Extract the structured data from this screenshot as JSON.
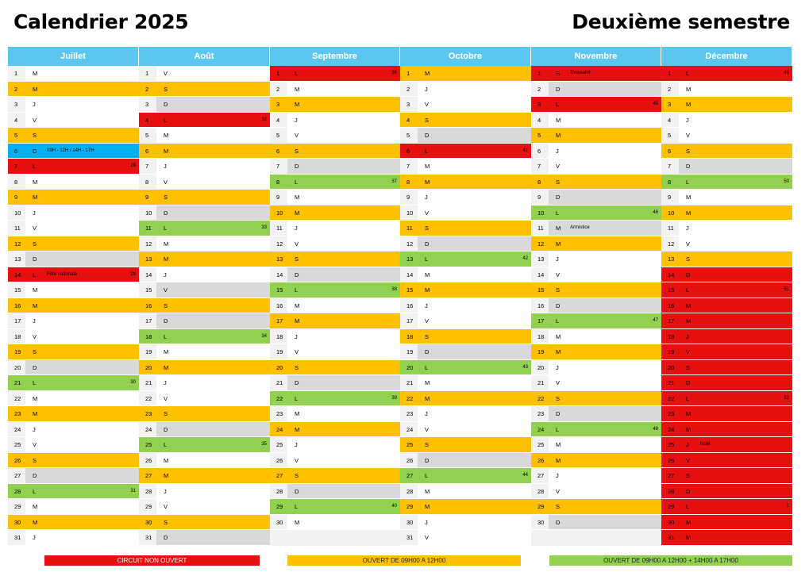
{
  "title_left": "Calendrier 2025",
  "title_right": "Deuxième semestre",
  "legend": {
    "red": "CIRCUIT NON OUVERT",
    "orange": "OUVERT DE 09H00 A 12H00",
    "green": "OUVERT DE 09H00 A 12H00 + 14H00 A 17H00"
  },
  "colors": {
    "red": "#e61010",
    "orange": "#ffc000",
    "green": "#92d050",
    "grey": "#d9d9d9",
    "blue": "#00b0f0",
    "header": "#5bc6ef"
  },
  "months": [
    {
      "name": "Juillet",
      "days": [
        {
          "d": "1",
          "w": "M",
          "c": "white"
        },
        {
          "d": "2",
          "w": "M",
          "c": "orange"
        },
        {
          "d": "3",
          "w": "J",
          "c": "white"
        },
        {
          "d": "4",
          "w": "V",
          "c": "white"
        },
        {
          "d": "5",
          "w": "S",
          "c": "orange"
        },
        {
          "d": "6",
          "w": "D",
          "c": "blue",
          "note": "09H - 12H / 14H - 17H"
        },
        {
          "d": "7",
          "w": "L",
          "c": "red",
          "wk": "28"
        },
        {
          "d": "8",
          "w": "M",
          "c": "white"
        },
        {
          "d": "9",
          "w": "M",
          "c": "orange"
        },
        {
          "d": "10",
          "w": "J",
          "c": "white"
        },
        {
          "d": "11",
          "w": "V",
          "c": "white"
        },
        {
          "d": "12",
          "w": "S",
          "c": "orange"
        },
        {
          "d": "13",
          "w": "D",
          "c": "grey"
        },
        {
          "d": "14",
          "w": "L",
          "c": "red",
          "note": "Fête nationale",
          "wk": "29"
        },
        {
          "d": "15",
          "w": "M",
          "c": "white"
        },
        {
          "d": "16",
          "w": "M",
          "c": "orange"
        },
        {
          "d": "17",
          "w": "J",
          "c": "white"
        },
        {
          "d": "18",
          "w": "V",
          "c": "white"
        },
        {
          "d": "19",
          "w": "S",
          "c": "orange"
        },
        {
          "d": "20",
          "w": "D",
          "c": "grey"
        },
        {
          "d": "21",
          "w": "L",
          "c": "green",
          "wk": "30"
        },
        {
          "d": "22",
          "w": "M",
          "c": "white"
        },
        {
          "d": "23",
          "w": "M",
          "c": "orange"
        },
        {
          "d": "24",
          "w": "J",
          "c": "white"
        },
        {
          "d": "25",
          "w": "V",
          "c": "white"
        },
        {
          "d": "26",
          "w": "S",
          "c": "orange"
        },
        {
          "d": "27",
          "w": "D",
          "c": "grey"
        },
        {
          "d": "28",
          "w": "L",
          "c": "green",
          "wk": "31"
        },
        {
          "d": "29",
          "w": "M",
          "c": "white"
        },
        {
          "d": "30",
          "w": "M",
          "c": "orange"
        },
        {
          "d": "31",
          "w": "J",
          "c": "white"
        }
      ]
    },
    {
      "name": "Août",
      "days": [
        {
          "d": "1",
          "w": "V",
          "c": "white"
        },
        {
          "d": "2",
          "w": "S",
          "c": "orange"
        },
        {
          "d": "3",
          "w": "D",
          "c": "grey"
        },
        {
          "d": "4",
          "w": "L",
          "c": "red",
          "wk": "32"
        },
        {
          "d": "5",
          "w": "M",
          "c": "white"
        },
        {
          "d": "6",
          "w": "M",
          "c": "orange"
        },
        {
          "d": "7",
          "w": "J",
          "c": "white"
        },
        {
          "d": "8",
          "w": "V",
          "c": "white"
        },
        {
          "d": "9",
          "w": "S",
          "c": "orange"
        },
        {
          "d": "10",
          "w": "D",
          "c": "grey"
        },
        {
          "d": "11",
          "w": "L",
          "c": "green",
          "wk": "33"
        },
        {
          "d": "12",
          "w": "M",
          "c": "white"
        },
        {
          "d": "13",
          "w": "M",
          "c": "orange"
        },
        {
          "d": "14",
          "w": "J",
          "c": "white"
        },
        {
          "d": "15",
          "w": "V",
          "c": "grey"
        },
        {
          "d": "16",
          "w": "S",
          "c": "orange"
        },
        {
          "d": "17",
          "w": "D",
          "c": "grey"
        },
        {
          "d": "18",
          "w": "L",
          "c": "green",
          "wk": "34"
        },
        {
          "d": "19",
          "w": "M",
          "c": "white"
        },
        {
          "d": "20",
          "w": "M",
          "c": "orange"
        },
        {
          "d": "21",
          "w": "J",
          "c": "white"
        },
        {
          "d": "22",
          "w": "V",
          "c": "white"
        },
        {
          "d": "23",
          "w": "S",
          "c": "orange"
        },
        {
          "d": "24",
          "w": "D",
          "c": "grey"
        },
        {
          "d": "25",
          "w": "L",
          "c": "green",
          "wk": "35"
        },
        {
          "d": "26",
          "w": "M",
          "c": "white"
        },
        {
          "d": "27",
          "w": "M",
          "c": "orange"
        },
        {
          "d": "28",
          "w": "J",
          "c": "white"
        },
        {
          "d": "29",
          "w": "V",
          "c": "white"
        },
        {
          "d": "30",
          "w": "S",
          "c": "orange"
        },
        {
          "d": "31",
          "w": "D",
          "c": "grey"
        }
      ]
    },
    {
      "name": "Septembre",
      "days": [
        {
          "d": "1",
          "w": "L",
          "c": "red",
          "wk": "36"
        },
        {
          "d": "2",
          "w": "M",
          "c": "white"
        },
        {
          "d": "3",
          "w": "M",
          "c": "orange"
        },
        {
          "d": "4",
          "w": "J",
          "c": "white"
        },
        {
          "d": "5",
          "w": "V",
          "c": "white"
        },
        {
          "d": "6",
          "w": "S",
          "c": "orange"
        },
        {
          "d": "7",
          "w": "D",
          "c": "grey"
        },
        {
          "d": "8",
          "w": "L",
          "c": "green",
          "wk": "37"
        },
        {
          "d": "9",
          "w": "M",
          "c": "white"
        },
        {
          "d": "10",
          "w": "M",
          "c": "orange"
        },
        {
          "d": "11",
          "w": "J",
          "c": "white"
        },
        {
          "d": "12",
          "w": "V",
          "c": "white"
        },
        {
          "d": "13",
          "w": "S",
          "c": "orange"
        },
        {
          "d": "14",
          "w": "D",
          "c": "grey"
        },
        {
          "d": "15",
          "w": "L",
          "c": "green",
          "wk": "38"
        },
        {
          "d": "16",
          "w": "M",
          "c": "white"
        },
        {
          "d": "17",
          "w": "M",
          "c": "orange"
        },
        {
          "d": "18",
          "w": "J",
          "c": "white"
        },
        {
          "d": "19",
          "w": "V",
          "c": "white"
        },
        {
          "d": "20",
          "w": "S",
          "c": "orange"
        },
        {
          "d": "21",
          "w": "D",
          "c": "grey"
        },
        {
          "d": "22",
          "w": "L",
          "c": "green",
          "wk": "39"
        },
        {
          "d": "23",
          "w": "M",
          "c": "white"
        },
        {
          "d": "24",
          "w": "M",
          "c": "orange"
        },
        {
          "d": "25",
          "w": "J",
          "c": "white"
        },
        {
          "d": "26",
          "w": "V",
          "c": "white"
        },
        {
          "d": "27",
          "w": "S",
          "c": "orange"
        },
        {
          "d": "28",
          "w": "D",
          "c": "grey"
        },
        {
          "d": "29",
          "w": "L",
          "c": "green",
          "wk": "40"
        },
        {
          "d": "30",
          "w": "M",
          "c": "white"
        }
      ]
    },
    {
      "name": "Octobre",
      "days": [
        {
          "d": "1",
          "w": "M",
          "c": "orange"
        },
        {
          "d": "2",
          "w": "J",
          "c": "white"
        },
        {
          "d": "3",
          "w": "V",
          "c": "white"
        },
        {
          "d": "4",
          "w": "S",
          "c": "orange"
        },
        {
          "d": "5",
          "w": "D",
          "c": "grey"
        },
        {
          "d": "6",
          "w": "L",
          "c": "red",
          "wk": "41"
        },
        {
          "d": "7",
          "w": "M",
          "c": "white"
        },
        {
          "d": "8",
          "w": "M",
          "c": "orange"
        },
        {
          "d": "9",
          "w": "J",
          "c": "white"
        },
        {
          "d": "10",
          "w": "V",
          "c": "white"
        },
        {
          "d": "11",
          "w": "S",
          "c": "orange"
        },
        {
          "d": "12",
          "w": "D",
          "c": "grey"
        },
        {
          "d": "13",
          "w": "L",
          "c": "green",
          "wk": "42"
        },
        {
          "d": "14",
          "w": "M",
          "c": "white"
        },
        {
          "d": "15",
          "w": "M",
          "c": "orange"
        },
        {
          "d": "16",
          "w": "J",
          "c": "white"
        },
        {
          "d": "17",
          "w": "V",
          "c": "white"
        },
        {
          "d": "18",
          "w": "S",
          "c": "orange"
        },
        {
          "d": "19",
          "w": "D",
          "c": "grey"
        },
        {
          "d": "20",
          "w": "L",
          "c": "green",
          "wk": "43"
        },
        {
          "d": "21",
          "w": "M",
          "c": "white"
        },
        {
          "d": "22",
          "w": "M",
          "c": "orange"
        },
        {
          "d": "23",
          "w": "J",
          "c": "white"
        },
        {
          "d": "24",
          "w": "V",
          "c": "white"
        },
        {
          "d": "25",
          "w": "S",
          "c": "orange"
        },
        {
          "d": "26",
          "w": "D",
          "c": "grey"
        },
        {
          "d": "27",
          "w": "L",
          "c": "green",
          "wk": "44"
        },
        {
          "d": "28",
          "w": "M",
          "c": "white"
        },
        {
          "d": "29",
          "w": "M",
          "c": "orange"
        },
        {
          "d": "30",
          "w": "J",
          "c": "white"
        },
        {
          "d": "31",
          "w": "V",
          "c": "white"
        }
      ]
    },
    {
      "name": "Novembre",
      "days": [
        {
          "d": "1",
          "w": "S",
          "c": "red",
          "note": "Toussaint"
        },
        {
          "d": "2",
          "w": "D",
          "c": "grey"
        },
        {
          "d": "3",
          "w": "L",
          "c": "red",
          "wk": "45"
        },
        {
          "d": "4",
          "w": "M",
          "c": "white"
        },
        {
          "d": "5",
          "w": "M",
          "c": "orange"
        },
        {
          "d": "6",
          "w": "J",
          "c": "white"
        },
        {
          "d": "7",
          "w": "V",
          "c": "white"
        },
        {
          "d": "8",
          "w": "S",
          "c": "orange"
        },
        {
          "d": "9",
          "w": "D",
          "c": "grey"
        },
        {
          "d": "10",
          "w": "L",
          "c": "green",
          "wk": "46"
        },
        {
          "d": "11",
          "w": "M",
          "c": "grey",
          "note": "Armistice"
        },
        {
          "d": "12",
          "w": "M",
          "c": "orange"
        },
        {
          "d": "13",
          "w": "J",
          "c": "white"
        },
        {
          "d": "14",
          "w": "V",
          "c": "white"
        },
        {
          "d": "15",
          "w": "S",
          "c": "orange"
        },
        {
          "d": "16",
          "w": "D",
          "c": "grey"
        },
        {
          "d": "17",
          "w": "L",
          "c": "green",
          "wk": "47"
        },
        {
          "d": "18",
          "w": "M",
          "c": "white"
        },
        {
          "d": "19",
          "w": "M",
          "c": "orange"
        },
        {
          "d": "20",
          "w": "J",
          "c": "white"
        },
        {
          "d": "21",
          "w": "V",
          "c": "white"
        },
        {
          "d": "22",
          "w": "S",
          "c": "orange"
        },
        {
          "d": "23",
          "w": "D",
          "c": "grey"
        },
        {
          "d": "24",
          "w": "L",
          "c": "green",
          "wk": "48"
        },
        {
          "d": "25",
          "w": "M",
          "c": "white"
        },
        {
          "d": "26",
          "w": "M",
          "c": "orange"
        },
        {
          "d": "27",
          "w": "J",
          "c": "white"
        },
        {
          "d": "28",
          "w": "V",
          "c": "white"
        },
        {
          "d": "29",
          "w": "S",
          "c": "orange"
        },
        {
          "d": "30",
          "w": "D",
          "c": "grey"
        }
      ]
    },
    {
      "name": "Décembre",
      "days": [
        {
          "d": "1",
          "w": "L",
          "c": "red",
          "wk": "49"
        },
        {
          "d": "2",
          "w": "M",
          "c": "white"
        },
        {
          "d": "3",
          "w": "M",
          "c": "orange"
        },
        {
          "d": "4",
          "w": "J",
          "c": "white"
        },
        {
          "d": "5",
          "w": "V",
          "c": "white"
        },
        {
          "d": "6",
          "w": "S",
          "c": "orange"
        },
        {
          "d": "7",
          "w": "D",
          "c": "grey"
        },
        {
          "d": "8",
          "w": "L",
          "c": "green",
          "wk": "50"
        },
        {
          "d": "9",
          "w": "M",
          "c": "white"
        },
        {
          "d": "10",
          "w": "M",
          "c": "orange"
        },
        {
          "d": "11",
          "w": "J",
          "c": "white"
        },
        {
          "d": "12",
          "w": "V",
          "c": "white"
        },
        {
          "d": "13",
          "w": "S",
          "c": "orange"
        },
        {
          "d": "14",
          "w": "D",
          "c": "red"
        },
        {
          "d": "15",
          "w": "L",
          "c": "red",
          "wk": "51"
        },
        {
          "d": "16",
          "w": "M",
          "c": "red"
        },
        {
          "d": "17",
          "w": "M",
          "c": "red"
        },
        {
          "d": "18",
          "w": "J",
          "c": "red"
        },
        {
          "d": "19",
          "w": "V",
          "c": "red"
        },
        {
          "d": "20",
          "w": "S",
          "c": "red"
        },
        {
          "d": "21",
          "w": "D",
          "c": "red"
        },
        {
          "d": "22",
          "w": "L",
          "c": "red",
          "wk": "52"
        },
        {
          "d": "23",
          "w": "M",
          "c": "red"
        },
        {
          "d": "24",
          "w": "M",
          "c": "red"
        },
        {
          "d": "25",
          "w": "J",
          "c": "red",
          "note": "Noël"
        },
        {
          "d": "26",
          "w": "V",
          "c": "red"
        },
        {
          "d": "27",
          "w": "S",
          "c": "red"
        },
        {
          "d": "28",
          "w": "D",
          "c": "red"
        },
        {
          "d": "29",
          "w": "L",
          "c": "red",
          "wk": "1"
        },
        {
          "d": "30",
          "w": "M",
          "c": "red"
        },
        {
          "d": "31",
          "w": "M",
          "c": "red"
        }
      ]
    }
  ]
}
